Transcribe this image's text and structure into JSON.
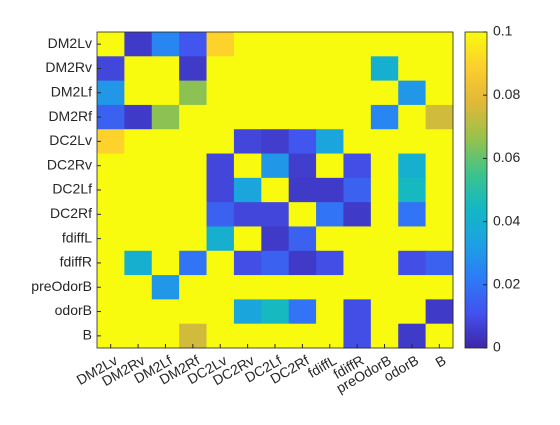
{
  "chart_data": {
    "type": "heatmap",
    "xcategories": [
      "DM2Lv",
      "DM2Rv",
      "DM2Lf",
      "DM2Rf",
      "DC2Lv",
      "DC2Rv",
      "DC2Lf",
      "DC2Rf",
      "fdiffL",
      "fdiffR",
      "preOdorB",
      "odorB",
      "B"
    ],
    "ycategories": [
      "DM2Lv",
      "DM2Rv",
      "DM2Lf",
      "DM2Rf",
      "DC2Lv",
      "DC2Rv",
      "DC2Lf",
      "DC2Rf",
      "fdiffL",
      "fdiffR",
      "preOdorB",
      "odorB",
      "B"
    ],
    "values": [
      [
        0.1,
        0.005,
        0.025,
        0.012,
        0.09,
        0.1,
        0.1,
        0.1,
        0.1,
        0.1,
        0.1,
        0.1,
        0.1
      ],
      [
        0.008,
        0.1,
        0.1,
        0.005,
        0.1,
        0.1,
        0.1,
        0.1,
        0.1,
        0.1,
        0.04,
        0.1,
        0.1
      ],
      [
        0.03,
        0.1,
        0.1,
        0.065,
        0.1,
        0.1,
        0.1,
        0.1,
        0.1,
        0.1,
        0.1,
        0.03,
        0.1
      ],
      [
        0.015,
        0.005,
        0.065,
        0.1,
        0.1,
        0.1,
        0.1,
        0.1,
        0.1,
        0.1,
        0.025,
        0.1,
        0.075
      ],
      [
        0.09,
        0.1,
        0.1,
        0.1,
        0.1,
        0.008,
        0.006,
        0.012,
        0.035,
        0.1,
        0.1,
        0.1,
        0.1
      ],
      [
        0.1,
        0.1,
        0.1,
        0.1,
        0.008,
        0.1,
        0.03,
        0.006,
        0.1,
        0.01,
        0.1,
        0.04,
        0.1
      ],
      [
        0.1,
        0.1,
        0.1,
        0.1,
        0.008,
        0.035,
        0.1,
        0.005,
        0.005,
        0.015,
        0.1,
        0.045,
        0.1
      ],
      [
        0.1,
        0.1,
        0.1,
        0.1,
        0.015,
        0.008,
        0.008,
        0.1,
        0.02,
        0.005,
        0.1,
        0.02,
        0.1
      ],
      [
        0.1,
        0.1,
        0.1,
        0.1,
        0.04,
        0.1,
        0.005,
        0.015,
        0.1,
        0.1,
        0.1,
        0.1,
        0.1
      ],
      [
        0.1,
        0.04,
        0.1,
        0.02,
        0.1,
        0.01,
        0.015,
        0.005,
        0.01,
        0.1,
        0.1,
        0.01,
        0.015
      ],
      [
        0.1,
        0.1,
        0.03,
        0.1,
        0.1,
        0.1,
        0.1,
        0.1,
        0.1,
        0.1,
        0.1,
        0.1,
        0.1
      ],
      [
        0.1,
        0.1,
        0.1,
        0.1,
        0.1,
        0.035,
        0.045,
        0.02,
        0.1,
        0.01,
        0.1,
        0.1,
        0.005
      ],
      [
        0.1,
        0.1,
        0.1,
        0.075,
        0.1,
        0.1,
        0.1,
        0.1,
        0.1,
        0.01,
        0.1,
        0.005,
        0.1
      ]
    ],
    "clim": [
      0,
      0.1
    ],
    "cticks": [
      0,
      0.02,
      0.04,
      0.06,
      0.08,
      0.1
    ],
    "colormap": [
      "#3e26a8",
      "#4352ee",
      "#2c7cf7",
      "#1ca2e2",
      "#14b8c3",
      "#40c38a",
      "#99c24a",
      "#e2b838",
      "#fcce2e",
      "#f9fb0e"
    ]
  }
}
